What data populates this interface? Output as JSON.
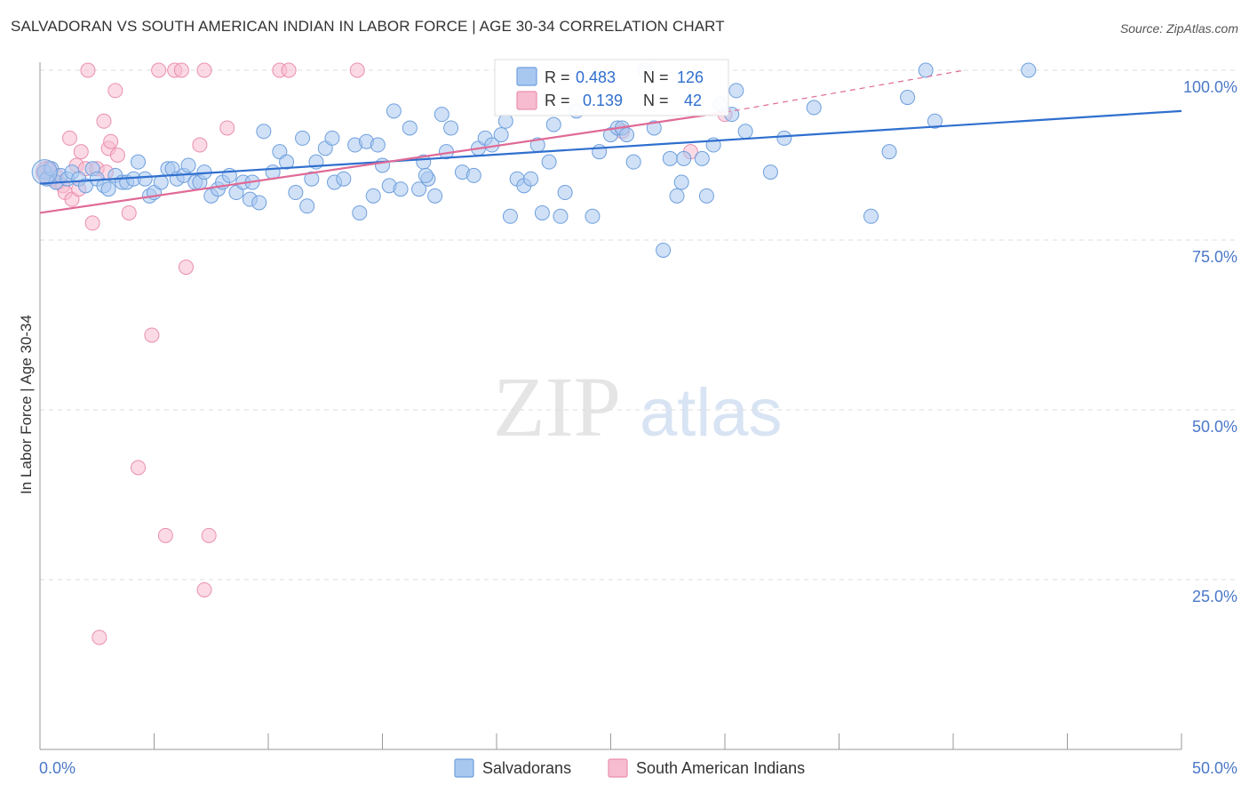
{
  "title": "SALVADORAN VS SOUTH AMERICAN INDIAN IN LABOR FORCE | AGE 30-34 CORRELATION CHART",
  "source": "Source: ZipAtlas.com",
  "watermark": {
    "zip": "ZIP",
    "atlas": "atlas"
  },
  "colors": {
    "blue_fill": "#a9c8f0",
    "blue_stroke": "#6e9fdd",
    "blue_line": "#2f6fce",
    "pink_fill": "#f7bcd0",
    "pink_stroke": "#ea8fae",
    "pink_line": "#e06a96",
    "tick_label": "#4a78c8",
    "grid": "#dddddd"
  },
  "legend": {
    "rows": [
      {
        "r_label": "R =",
        "r_value": "0.483",
        "n_label": "N =",
        "n_value": "126"
      },
      {
        "r_label": "R =",
        "r_value": "0.139",
        "n_label": "N =",
        "n_value": "42"
      }
    ]
  },
  "bottom_legend": [
    "Salvadorans",
    "South American Indians"
  ],
  "chart_data": {
    "type": "scatter",
    "title": "SALVADORAN VS SOUTH AMERICAN INDIAN IN LABOR FORCE | AGE 30-34 CORRELATION CHART",
    "xlabel": "",
    "ylabel": "In Labor Force | Age 30-34",
    "xlim": [
      0,
      50
    ],
    "ylim": [
      0,
      105
    ],
    "x_tick_labels": [
      "0.0%",
      "50.0%"
    ],
    "y_ticks": [
      25,
      50,
      75,
      100
    ],
    "y_tick_labels": [
      "25.0%",
      "50.0%",
      "75.0%",
      "100.0%"
    ],
    "grid": true,
    "legend_position": "top-center",
    "series": [
      {
        "name": "Salvadorans",
        "R": 0.483,
        "N": 126,
        "trend": {
          "x": [
            0,
            50
          ],
          "y": [
            83.3,
            94.0
          ]
        },
        "points": [
          [
            0.2,
            85.0
          ],
          [
            0.3,
            84.0
          ],
          [
            0.5,
            85.5
          ],
          [
            0.7,
            83.5
          ],
          [
            0.9,
            84.5
          ],
          [
            1.2,
            84.0
          ],
          [
            1.4,
            85.0
          ],
          [
            1.7,
            84.0
          ],
          [
            2.0,
            83.0
          ],
          [
            2.3,
            85.5
          ],
          [
            2.5,
            84.0
          ],
          [
            2.8,
            83.0
          ],
          [
            3.0,
            82.5
          ],
          [
            3.3,
            84.5
          ],
          [
            3.6,
            83.5
          ],
          [
            3.8,
            83.5
          ],
          [
            4.1,
            84.0
          ],
          [
            4.3,
            86.5
          ],
          [
            4.6,
            84.0
          ],
          [
            4.8,
            81.5
          ],
          [
            5.0,
            82.0
          ],
          [
            5.3,
            83.5
          ],
          [
            5.6,
            85.5
          ],
          [
            5.8,
            85.5
          ],
          [
            6.0,
            84.0
          ],
          [
            6.3,
            84.5
          ],
          [
            6.5,
            86.0
          ],
          [
            6.8,
            83.5
          ],
          [
            7.0,
            83.5
          ],
          [
            7.2,
            85.0
          ],
          [
            7.5,
            81.5
          ],
          [
            7.8,
            82.5
          ],
          [
            8.0,
            83.5
          ],
          [
            8.3,
            84.5
          ],
          [
            8.6,
            82.0
          ],
          [
            8.9,
            83.5
          ],
          [
            9.2,
            81.0
          ],
          [
            9.6,
            80.5
          ],
          [
            9.8,
            91.0
          ],
          [
            10.2,
            85.0
          ],
          [
            10.5,
            88.0
          ],
          [
            10.8,
            86.5
          ],
          [
            11.2,
            82.0
          ],
          [
            11.5,
            90.0
          ],
          [
            11.7,
            80.0
          ],
          [
            11.9,
            84.0
          ],
          [
            12.1,
            86.5
          ],
          [
            12.5,
            88.5
          ],
          [
            12.8,
            90.0
          ],
          [
            12.9,
            83.5
          ],
          [
            13.3,
            84.0
          ],
          [
            13.8,
            89.0
          ],
          [
            14.0,
            79.0
          ],
          [
            14.3,
            89.5
          ],
          [
            14.6,
            81.5
          ],
          [
            14.8,
            89.0
          ],
          [
            15.0,
            86.0
          ],
          [
            15.3,
            83.0
          ],
          [
            15.5,
            94.0
          ],
          [
            15.8,
            82.5
          ],
          [
            16.2,
            91.5
          ],
          [
            16.6,
            82.5
          ],
          [
            16.8,
            86.5
          ],
          [
            17.0,
            84.0
          ],
          [
            17.3,
            81.5
          ],
          [
            17.6,
            93.5
          ],
          [
            17.8,
            88.0
          ],
          [
            18.0,
            91.5
          ],
          [
            18.5,
            85.0
          ],
          [
            19.0,
            84.5
          ],
          [
            19.2,
            88.5
          ],
          [
            19.5,
            90.0
          ],
          [
            19.8,
            89.0
          ],
          [
            20.2,
            90.5
          ],
          [
            20.4,
            92.5
          ],
          [
            20.6,
            78.5
          ],
          [
            20.9,
            84.0
          ],
          [
            21.2,
            83.0
          ],
          [
            21.5,
            84.0
          ],
          [
            21.8,
            89.0
          ],
          [
            22.0,
            79.0
          ],
          [
            22.3,
            86.5
          ],
          [
            22.5,
            92.0
          ],
          [
            22.8,
            78.5
          ],
          [
            23.0,
            82.0
          ],
          [
            23.5,
            94.0
          ],
          [
            24.2,
            78.5
          ],
          [
            24.5,
            88.0
          ],
          [
            25.0,
            90.5
          ],
          [
            25.3,
            91.5
          ],
          [
            25.5,
            91.5
          ],
          [
            25.7,
            90.5
          ],
          [
            26.0,
            86.5
          ],
          [
            26.5,
            100.0
          ],
          [
            26.9,
            91.5
          ],
          [
            27.3,
            73.5
          ],
          [
            27.6,
            87.0
          ],
          [
            27.9,
            81.5
          ],
          [
            28.1,
            83.5
          ],
          [
            28.2,
            87.0
          ],
          [
            29.0,
            87.0
          ],
          [
            29.2,
            81.5
          ],
          [
            29.5,
            89.0
          ],
          [
            29.8,
            95.0
          ],
          [
            30.5,
            97.0
          ],
          [
            30.3,
            93.5
          ],
          [
            30.9,
            91.0
          ],
          [
            32.0,
            85.0
          ],
          [
            32.6,
            90.0
          ],
          [
            33.9,
            94.5
          ],
          [
            36.4,
            78.5
          ],
          [
            37.2,
            88.0
          ],
          [
            38.0,
            96.0
          ],
          [
            38.8,
            100.0
          ],
          [
            39.2,
            92.5
          ],
          [
            43.3,
            100.0
          ],
          [
            16.9,
            84.5
          ],
          [
            9.3,
            83.5
          ]
        ]
      },
      {
        "name": "South American Indians",
        "R": 0.139,
        "N": 42,
        "trend": {
          "x": [
            0,
            30
          ],
          "y": [
            79.0,
            93.8
          ]
        },
        "trend_dashed": {
          "x": [
            30,
            40.5
          ],
          "y": [
            93.8,
            100.0
          ]
        },
        "points": [
          [
            0.2,
            85.0
          ],
          [
            0.4,
            85.5
          ],
          [
            0.5,
            84.0
          ],
          [
            0.7,
            84.5
          ],
          [
            0.8,
            83.5
          ],
          [
            1.0,
            83.0
          ],
          [
            1.1,
            82.0
          ],
          [
            1.3,
            90.0
          ],
          [
            1.4,
            81.0
          ],
          [
            1.6,
            86.0
          ],
          [
            1.7,
            82.5
          ],
          [
            1.8,
            88.0
          ],
          [
            2.0,
            85.5
          ],
          [
            2.1,
            100.0
          ],
          [
            2.3,
            77.5
          ],
          [
            2.5,
            85.5
          ],
          [
            2.8,
            92.5
          ],
          [
            2.9,
            85.0
          ],
          [
            3.0,
            88.5
          ],
          [
            3.1,
            89.5
          ],
          [
            3.3,
            97.0
          ],
          [
            3.4,
            87.5
          ],
          [
            3.9,
            79.0
          ],
          [
            4.3,
            41.5
          ],
          [
            4.9,
            61.0
          ],
          [
            5.2,
            100.0
          ],
          [
            5.5,
            31.5
          ],
          [
            5.9,
            100.0
          ],
          [
            6.2,
            100.0
          ],
          [
            6.4,
            71.0
          ],
          [
            7.0,
            89.0
          ],
          [
            7.2,
            23.5
          ],
          [
            7.2,
            100.0
          ],
          [
            7.4,
            31.5
          ],
          [
            8.2,
            91.5
          ],
          [
            10.5,
            100.0
          ],
          [
            10.9,
            100.0
          ],
          [
            13.9,
            100.0
          ],
          [
            25.5,
            91.0
          ],
          [
            28.5,
            88.0
          ],
          [
            2.6,
            16.5
          ],
          [
            30.0,
            93.5
          ]
        ]
      }
    ]
  }
}
